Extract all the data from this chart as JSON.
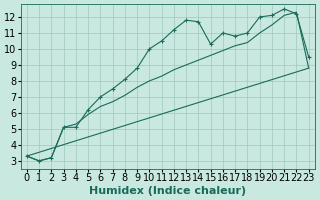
{
  "xlabel": "Humidex (Indice chaleur)",
  "bg_color": "#c8e8e0",
  "line_color": "#1a6b5a",
  "grid_color": "#a0c8c0",
  "xlim": [
    -0.5,
    23.5
  ],
  "ylim": [
    2.5,
    12.8
  ],
  "xticks": [
    0,
    1,
    2,
    3,
    4,
    5,
    6,
    7,
    8,
    9,
    10,
    11,
    12,
    13,
    14,
    15,
    16,
    17,
    18,
    19,
    20,
    21,
    22,
    23
  ],
  "yticks": [
    3,
    4,
    5,
    6,
    7,
    8,
    9,
    10,
    11,
    12
  ],
  "line1_x": [
    0,
    1,
    2,
    3,
    4,
    5,
    6,
    7,
    8,
    9,
    10,
    11,
    12,
    13,
    14,
    15,
    16,
    17,
    18,
    19,
    20,
    21,
    22,
    23
  ],
  "line1_y": [
    3.3,
    3.0,
    3.2,
    5.1,
    5.1,
    6.2,
    7.0,
    7.5,
    8.1,
    8.8,
    10.0,
    10.5,
    11.2,
    11.8,
    11.7,
    10.3,
    11.0,
    10.8,
    11.0,
    12.0,
    12.1,
    12.5,
    12.2,
    9.5
  ],
  "line2_x": [
    0,
    1,
    2,
    3,
    4,
    5,
    6,
    7,
    8,
    9,
    10,
    11,
    12,
    13,
    14,
    15,
    16,
    17,
    18,
    19,
    20,
    21,
    22,
    23
  ],
  "line2_y": [
    3.3,
    3.0,
    3.2,
    5.1,
    5.3,
    5.9,
    6.4,
    6.7,
    7.1,
    7.6,
    8.0,
    8.3,
    8.7,
    9.0,
    9.3,
    9.6,
    9.9,
    10.2,
    10.4,
    11.0,
    11.5,
    12.1,
    12.3,
    8.8
  ],
  "line3_x": [
    0,
    23
  ],
  "line3_y": [
    3.3,
    8.8
  ],
  "font_size": 7
}
